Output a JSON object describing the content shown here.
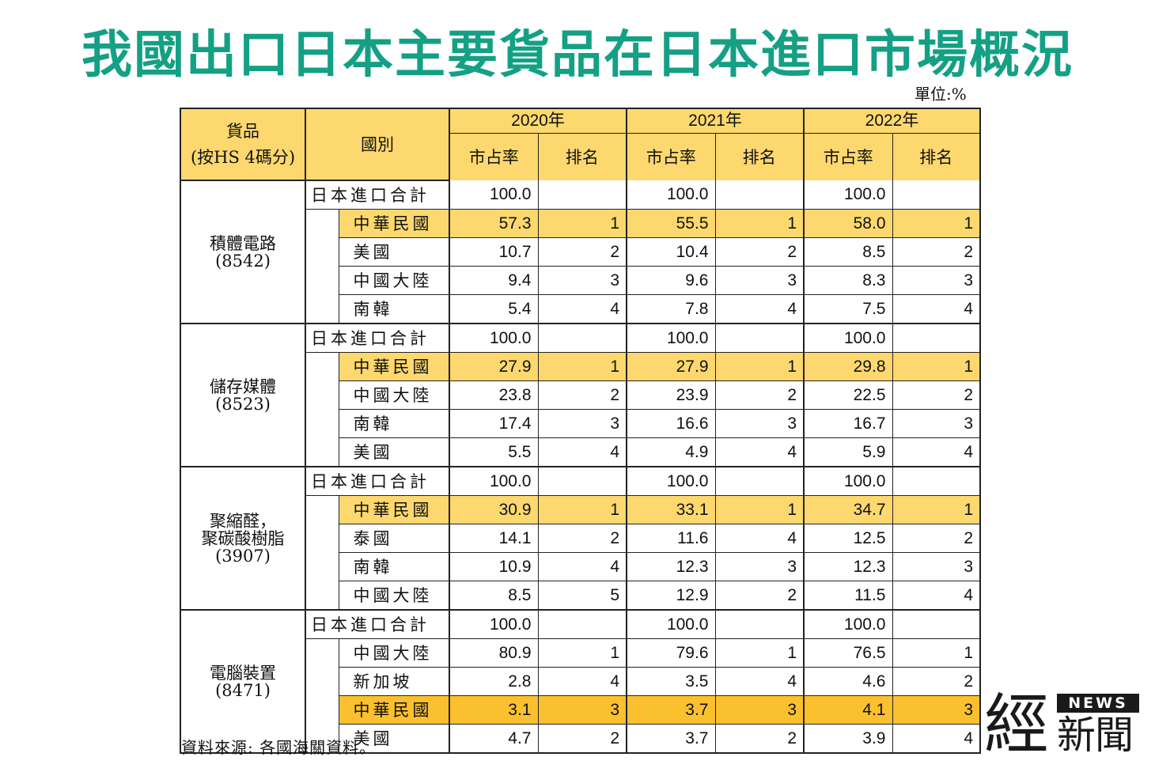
{
  "title": "我國出口日本主要貨品在日本進口市場概況",
  "unit": "單位:%",
  "header": {
    "product": "貨品",
    "product_note": "(按HS 4碼分)",
    "country": "國別",
    "years": [
      "2020年",
      "2021年",
      "2022年"
    ],
    "share": "市占率",
    "rank": "排名"
  },
  "groups": [
    {
      "name_lines": [
        "積體電路"
      ],
      "code": "(8542)",
      "total_label": "日本進口合計",
      "totals": [
        "100.0",
        "100.0",
        "100.0"
      ],
      "rows": [
        {
          "country": "中華民國",
          "v": [
            "57.3",
            "1",
            "55.5",
            "1",
            "58.0",
            "1"
          ]
        },
        {
          "country": "美國",
          "v": [
            "10.7",
            "2",
            "10.4",
            "2",
            "8.5",
            "2"
          ]
        },
        {
          "country": "中國大陸",
          "v": [
            "9.4",
            "3",
            "9.6",
            "3",
            "8.3",
            "3"
          ]
        },
        {
          "country": "南韓",
          "v": [
            "5.4",
            "4",
            "7.8",
            "4",
            "7.5",
            "4"
          ]
        }
      ]
    },
    {
      "name_lines": [
        "儲存媒體"
      ],
      "code": "(8523)",
      "total_label": "日本進口合計",
      "totals": [
        "100.0",
        "100.0",
        "100.0"
      ],
      "rows": [
        {
          "country": "中華民國",
          "v": [
            "27.9",
            "1",
            "27.9",
            "1",
            "29.8",
            "1"
          ]
        },
        {
          "country": "中國大陸",
          "v": [
            "23.8",
            "2",
            "23.9",
            "2",
            "22.5",
            "2"
          ]
        },
        {
          "country": "南韓",
          "v": [
            "17.4",
            "3",
            "16.6",
            "3",
            "16.7",
            "3"
          ]
        },
        {
          "country": "美國",
          "v": [
            "5.5",
            "4",
            "4.9",
            "4",
            "5.9",
            "4"
          ]
        }
      ]
    },
    {
      "name_lines": [
        "聚縮醛，",
        "聚碳酸樹脂"
      ],
      "code": "(3907)",
      "total_label": "日本進口合計",
      "totals": [
        "100.0",
        "100.0",
        "100.0"
      ],
      "rows": [
        {
          "country": "中華民國",
          "v": [
            "30.9",
            "1",
            "33.1",
            "1",
            "34.7",
            "1"
          ]
        },
        {
          "country": "泰國",
          "v": [
            "14.1",
            "2",
            "11.6",
            "4",
            "12.5",
            "2"
          ]
        },
        {
          "country": "南韓",
          "v": [
            "10.9",
            "4",
            "12.3",
            "3",
            "12.3",
            "3"
          ]
        },
        {
          "country": "中國大陸",
          "v": [
            "8.5",
            "5",
            "12.9",
            "2",
            "11.5",
            "4"
          ]
        }
      ]
    },
    {
      "name_lines": [
        "電腦裝置"
      ],
      "code": "(8471)",
      "total_label": "日本進口合計",
      "totals": [
        "100.0",
        "100.0",
        "100.0"
      ],
      "rows": [
        {
          "country": "中國大陸",
          "v": [
            "80.9",
            "1",
            "79.6",
            "1",
            "76.5",
            "1"
          ]
        },
        {
          "country": "新加坡",
          "v": [
            "2.8",
            "4",
            "3.5",
            "4",
            "4.6",
            "2"
          ]
        },
        {
          "country": "中華民國",
          "v": [
            "3.1",
            "3",
            "3.7",
            "3",
            "4.1",
            "3"
          ]
        },
        {
          "country": "美國",
          "v": [
            "4.7",
            "2",
            "3.7",
            "2",
            "3.9",
            "4"
          ]
        }
      ]
    }
  ],
  "colors": {
    "title": "#14a085",
    "header_fill": "#fdd86e",
    "highlight_row": "#fdd86e",
    "highlight_row_strong": "#fbc02d"
  },
  "source": "資料來源: 各國海關資料。",
  "logo": {
    "big_char": "經",
    "news": "NEWS",
    "small_chars": "新聞"
  }
}
